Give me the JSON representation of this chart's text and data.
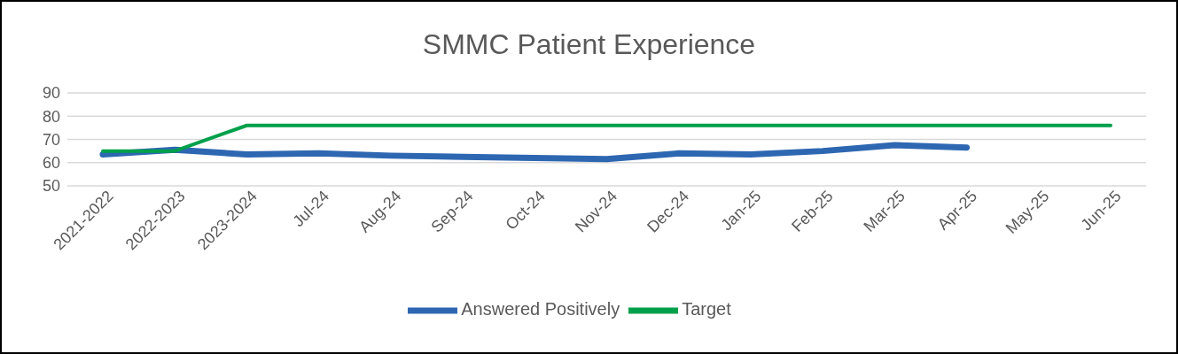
{
  "chart_data": {
    "type": "line",
    "title": "SMMC Patient Experience",
    "categories": [
      "2021-2022",
      "2022-2023",
      "2023-2024",
      "Jul-24",
      "Aug-24",
      "Sep-24",
      "Oct-24",
      "Nov-24",
      "Dec-24",
      "Jan-25",
      "Feb-25",
      "Mar-25",
      "Apr-25",
      "May-25",
      "Jun-25"
    ],
    "series": [
      {
        "name": "Answered Positively",
        "color": "#2e67b1",
        "values": [
          63.5,
          65.5,
          63.5,
          64,
          63,
          62.5,
          62,
          61.5,
          64,
          63.5,
          65,
          67.5,
          66.5,
          null,
          null
        ]
      },
      {
        "name": "Target",
        "color": "#00a04b",
        "values": [
          65,
          65,
          76,
          76,
          76,
          76,
          76,
          76,
          76,
          76,
          76,
          76,
          76,
          76,
          76
        ]
      }
    ],
    "ylim": [
      50,
      90
    ],
    "yticks": [
      50,
      60,
      70,
      80,
      90
    ],
    "grid": "y",
    "legend": "bottom",
    "marker": "none",
    "line_style": "solid"
  }
}
